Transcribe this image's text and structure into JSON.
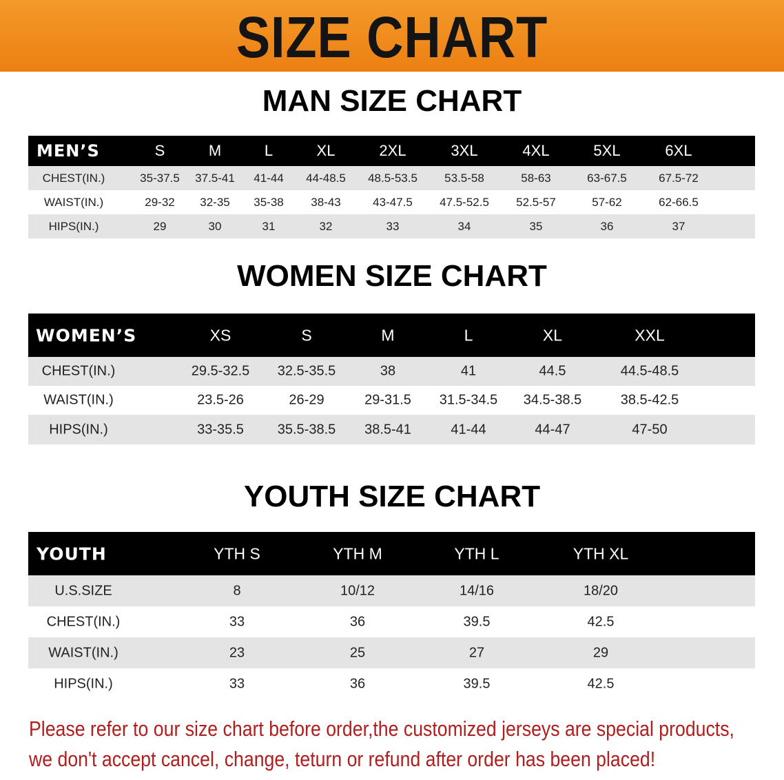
{
  "banner": {
    "title": "SIZE CHART",
    "color": "#ee8418"
  },
  "men": {
    "title": "MAN SIZE CHART",
    "header": "MEN’S",
    "sizes": [
      "S",
      "M",
      "L",
      "XL",
      "2XL",
      "3XL",
      "4XL",
      "5XL",
      "6XL"
    ],
    "rows": [
      {
        "label": "CHEST(IN.)",
        "values": [
          "35-37.5",
          "37.5-41",
          "41-44",
          "44-48.5",
          "48.5-53.5",
          "53.5-58",
          "58-63",
          "63-67.5",
          "67.5-72"
        ]
      },
      {
        "label": "WAIST(IN.)",
        "values": [
          "29-32",
          "32-35",
          "35-38",
          "38-43",
          "43-47.5",
          "47.5-52.5",
          "52.5-57",
          "57-62",
          "62-66.5"
        ]
      },
      {
        "label": "HIPS(IN.)",
        "values": [
          "29",
          "30",
          "31",
          "32",
          "33",
          "34",
          "35",
          "36",
          "37"
        ]
      }
    ]
  },
  "women": {
    "title": "WOMEN SIZE CHART",
    "header": "WOMEN’S",
    "sizes": [
      "XS",
      "S",
      "M",
      "L",
      "XL",
      "XXL"
    ],
    "rows": [
      {
        "label": "CHEST(IN.)",
        "values": [
          "29.5-32.5",
          "32.5-35.5",
          "38",
          "41",
          "44.5",
          "44.5-48.5"
        ]
      },
      {
        "label": "WAIST(IN.)",
        "values": [
          "23.5-26",
          "26-29",
          "29-31.5",
          "31.5-34.5",
          "34.5-38.5",
          "38.5-42.5"
        ]
      },
      {
        "label": "HIPS(IN.)",
        "values": [
          "33-35.5",
          "35.5-38.5",
          "38.5-41",
          "41-44",
          "44-47",
          "47-50"
        ]
      }
    ]
  },
  "youth": {
    "title": "YOUTH SIZE CHART",
    "header": "YOUTH",
    "sizes": [
      "YTH S",
      "YTH M",
      "YTH L",
      "YTH XL"
    ],
    "rows": [
      {
        "label": "U.S.SIZE",
        "values": [
          "8",
          "10/12",
          "14/16",
          "18/20"
        ]
      },
      {
        "label": "CHEST(IN.)",
        "values": [
          "33",
          "36",
          "39.5",
          "42.5"
        ]
      },
      {
        "label": "WAIST(IN.)",
        "values": [
          "23",
          "25",
          "27",
          "29"
        ]
      },
      {
        "label": "HIPS(IN.)",
        "values": [
          "33",
          "36",
          "39.5",
          "42.5"
        ]
      }
    ]
  },
  "notice": {
    "line1": "Please refer to our size chart before order,the customized jerseys are special products,",
    "line2": "we don't accept cancel, change, teturn or refund after order has been placed!",
    "color": "#b01e1e"
  }
}
